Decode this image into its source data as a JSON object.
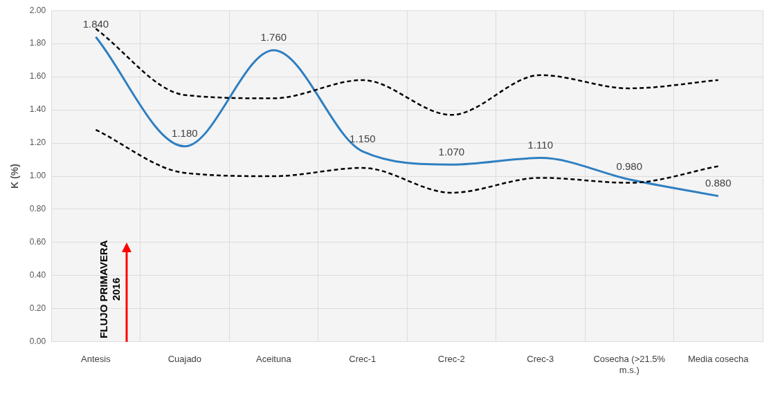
{
  "chart_data": {
    "type": "line",
    "categories": [
      "Antesis",
      "Cuajado",
      "Aceituna",
      "Crec-1",
      "Crec-2",
      "Crec-3",
      "Cosecha (>21.5% m.s.)",
      "Media cosecha"
    ],
    "ylabel": "K (%)",
    "ylim": [
      0,
      2
    ],
    "yticks": [
      {
        "value": 0,
        "label": "0.00"
      },
      {
        "value": 0.2,
        "label": "0.20"
      },
      {
        "value": 0.4,
        "label": "0.40"
      },
      {
        "value": 0.6,
        "label": "0.60"
      },
      {
        "value": 0.8,
        "label": "0.80"
      },
      {
        "value": 1,
        "label": "1.00"
      },
      {
        "value": 1.2,
        "label": "1.20"
      },
      {
        "value": 1.4,
        "label": "1.40"
      },
      {
        "value": 1.6,
        "label": "1.60"
      },
      {
        "value": 1.8,
        "label": "1.80"
      },
      {
        "value": 2,
        "label": "2.00"
      }
    ],
    "grid": true,
    "legend": false,
    "marker": "none",
    "series": [
      {
        "color": "#000000",
        "line_style": "dashed",
        "values": [
          1.89,
          1.49,
          1.47,
          1.58,
          1.37,
          1.61,
          1.53,
          1.58
        ]
      },
      {
        "color": "#000000",
        "line_style": "dashed",
        "values": [
          1.28,
          1.02,
          1.0,
          1.05,
          0.9,
          0.99,
          0.96,
          1.06
        ]
      },
      {
        "color": "#2e7fc1",
        "line_style": "solid",
        "values": [
          1.84,
          1.18,
          1.76,
          1.15,
          1.07,
          1.11,
          0.98,
          0.88
        ],
        "value_labels": [
          "1.840",
          "1.180",
          "1.760",
          "1.150",
          "1.070",
          "1.110",
          "0.980",
          "0.880"
        ]
      }
    ],
    "annotations": [
      "FLUJO PRIMAVERA 2016"
    ]
  }
}
